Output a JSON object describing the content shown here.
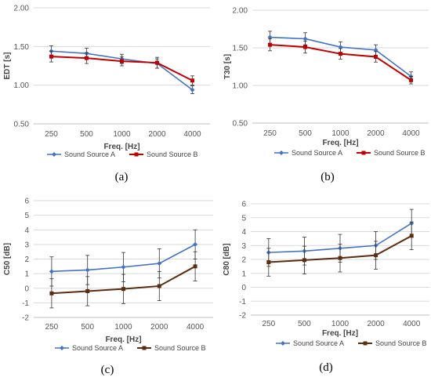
{
  "colors": {
    "source_a": "#4472C4",
    "source_b_ab": "#C00000",
    "source_b_cd": "#5B2C0F",
    "grid": "#d9d9d9",
    "errorbar": "#333333"
  },
  "chart_data": [
    {
      "panel_label": "(a)",
      "type": "line",
      "categories": [
        "250",
        "500",
        "1000",
        "2000",
        "4000"
      ],
      "xlabel": "Freq. [Hz]",
      "ylabel": "EDT [s]",
      "ylim": [
        0.5,
        2.0
      ],
      "yticks": [
        "0.50",
        "1.00",
        "1.50",
        "2.00"
      ],
      "grid": "horizontal",
      "legend_placement": "bottom",
      "series": [
        {
          "name": "Sound Source A",
          "values": [
            1.44,
            1.41,
            1.34,
            1.28,
            0.94
          ],
          "err": [
            0.07,
            0.07,
            0.06,
            0.06,
            0.05
          ]
        },
        {
          "name": "Sound Source B",
          "values": [
            1.37,
            1.35,
            1.31,
            1.29,
            1.06
          ],
          "err": [
            0.07,
            0.07,
            0.06,
            0.07,
            0.06
          ]
        }
      ]
    },
    {
      "panel_label": "(b)",
      "type": "line",
      "categories": [
        "250",
        "500",
        "1000",
        "2000",
        "4000"
      ],
      "xlabel": "Freq. [Hz]",
      "ylabel": "T30 [s]",
      "ylim": [
        0.5,
        2.0
      ],
      "yticks": [
        "0.50",
        "1.00",
        "1.50",
        "2.00"
      ],
      "grid": "horizontal",
      "legend_placement": "bottom",
      "series": [
        {
          "name": "Sound Source A",
          "values": [
            1.64,
            1.62,
            1.51,
            1.47,
            1.12
          ],
          "err": [
            0.08,
            0.08,
            0.07,
            0.07,
            0.06
          ]
        },
        {
          "name": "Sound Source B",
          "values": [
            1.54,
            1.51,
            1.42,
            1.38,
            1.07
          ],
          "err": [
            0.08,
            0.08,
            0.07,
            0.07,
            0.05
          ]
        }
      ]
    },
    {
      "panel_label": "(c)",
      "type": "line",
      "categories": [
        "250",
        "500",
        "1000",
        "2000",
        "4000"
      ],
      "xlabel": "Freq. [Hz]",
      "ylabel": "C50 [dB]",
      "ylim": [
        -2,
        6
      ],
      "yticks": [
        "-2",
        "-1",
        "0",
        "1",
        "2",
        "3",
        "4",
        "5",
        "6"
      ],
      "grid": "horizontal",
      "legend_placement": "bottom",
      "series": [
        {
          "name": "Sound Source A",
          "values": [
            1.15,
            1.25,
            1.45,
            1.7,
            3.0
          ],
          "err": [
            1.0,
            1.0,
            1.0,
            1.0,
            1.0
          ]
        },
        {
          "name": "Sound Source B",
          "values": [
            -0.35,
            -0.2,
            -0.05,
            0.15,
            1.5
          ],
          "err": [
            1.0,
            1.0,
            1.0,
            1.0,
            1.0
          ]
        }
      ]
    },
    {
      "panel_label": "(d)",
      "type": "line",
      "categories": [
        "250",
        "500",
        "1000",
        "2000",
        "4000"
      ],
      "xlabel": "Freq. [Hz]",
      "ylabel": "C80 [dB]",
      "ylim": [
        -2,
        6
      ],
      "yticks": [
        "-2",
        "-1",
        "0",
        "1",
        "2",
        "3",
        "4",
        "5",
        "6"
      ],
      "grid": "horizontal",
      "legend_placement": "bottom",
      "series": [
        {
          "name": "Sound Source A",
          "values": [
            2.5,
            2.6,
            2.8,
            3.0,
            4.6
          ],
          "err": [
            1.0,
            1.0,
            1.0,
            1.0,
            1.0
          ]
        },
        {
          "name": "Sound Source B",
          "values": [
            1.8,
            1.95,
            2.1,
            2.3,
            3.7
          ],
          "err": [
            1.0,
            1.0,
            1.0,
            1.0,
            1.0
          ]
        }
      ]
    }
  ]
}
